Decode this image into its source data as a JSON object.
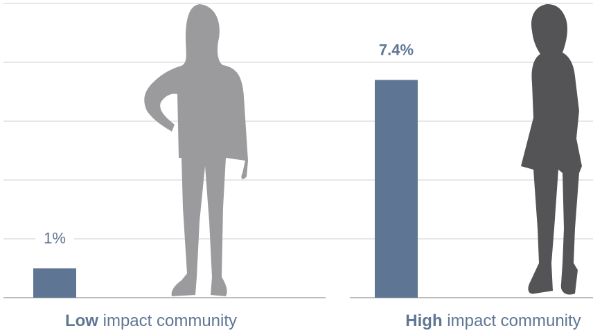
{
  "chart_data": {
    "type": "bar",
    "categories": [
      "Low impact community",
      "High impact community"
    ],
    "values": [
      1,
      7.4
    ],
    "value_labels": [
      "1%",
      "7.4%"
    ],
    "color": "#5e7694",
    "ylim": [
      0,
      10
    ],
    "yticks": [
      0,
      2,
      4,
      6,
      8,
      10
    ],
    "grid": true
  }
}
